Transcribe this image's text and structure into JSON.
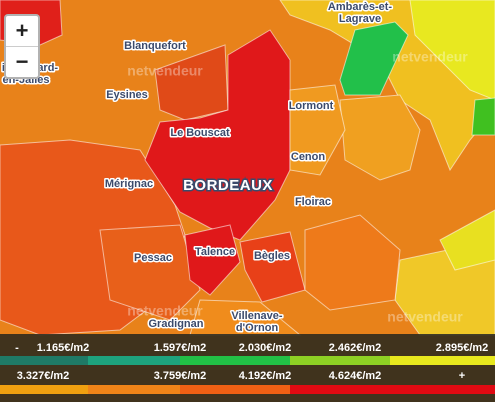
{
  "zoom_controls": {
    "zoom_in": "+",
    "zoom_out": "−"
  },
  "watermark": "netvendeur",
  "places": [
    [
      "Ambarès-et-",
      "Lagrave"
    ],
    [
      "Blanquefort"
    ],
    [
      "in-Médard-",
      "en-Jalles"
    ],
    [
      "Eysines"
    ],
    [
      "Lormont"
    ],
    [
      "Le Bouscat"
    ],
    [
      "Cenon"
    ],
    [
      "BORDEAUX"
    ],
    [
      "Mérignac"
    ],
    [
      "Floirac"
    ],
    [
      "Pessac"
    ],
    [
      "Talence"
    ],
    [
      "Bègles"
    ],
    [
      "Gradignan"
    ],
    [
      "Villenave-",
      "d'Ornon"
    ]
  ],
  "legend": {
    "rows": [
      {
        "labels": [
          "-",
          "1.165€/m2",
          "1.597€/m2",
          "2.030€/m2",
          "2.462€/m2",
          "2.895€/m2"
        ],
        "colors": [
          "#1f7a66",
          "#1ea37e",
          "#22c046",
          "#8ed024",
          "#e8e81e"
        ]
      },
      {
        "labels": [
          "3.327€/m2",
          "3.759€/m2",
          "4.192€/m2",
          "4.624€/m2",
          "+"
        ],
        "colors": [
          "#f0a010",
          "#f08418",
          "#f06014",
          "#e00a12"
        ]
      }
    ]
  }
}
